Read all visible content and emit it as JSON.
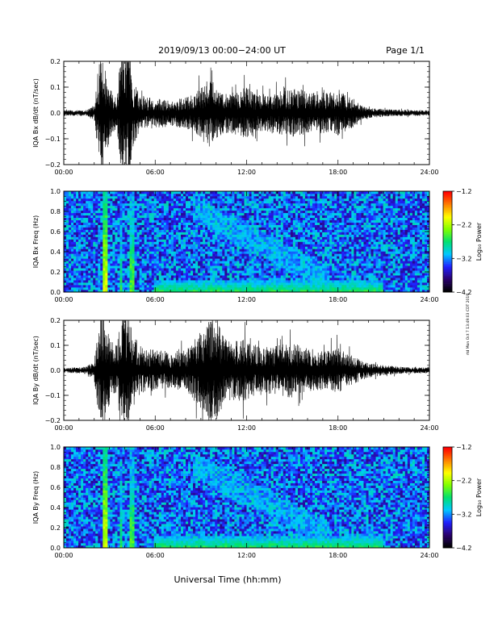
{
  "header": {
    "title": "2019/09/13  00:00−24:00 UT",
    "page": "Page 1/1"
  },
  "footer": {
    "xlabel": "Universal Time (hh:mm)"
  },
  "side_note": "rtd Mon Oct 7 13:49:03 CDT 2019",
  "colors": {
    "trace": "#000000",
    "spectrogram_scale": [
      "#000000",
      "#2a006e",
      "#2020ff",
      "#00c8ff",
      "#00e070",
      "#80ff00",
      "#ffff00",
      "#ff8000",
      "#ff0000"
    ]
  },
  "chart_data": [
    {
      "type": "line",
      "name": "bx-derivative",
      "ylabel": "IQA Bx dB/dt (nT/sec)",
      "xlim": [
        0,
        24
      ],
      "ylim": [
        -0.2,
        0.2
      ],
      "x_ticks": [
        "00:00",
        "06:00",
        "12:00",
        "18:00",
        "24:00"
      ],
      "y_ticks": [
        "−0.2",
        "−0.1",
        "0.0",
        "0.1",
        "0.2"
      ],
      "y_tick_values": [
        -0.2,
        -0.1,
        0.0,
        0.1,
        0.2
      ],
      "envelope": {
        "x_hours": [
          0,
          1,
          1.5,
          2,
          2.3,
          2.6,
          2.8,
          3.2,
          3.5,
          3.7,
          4.0,
          4.3,
          4.6,
          5.0,
          5.5,
          6.0,
          7.0,
          8.0,
          8.5,
          9.0,
          9.5,
          10.0,
          10.5,
          11.0,
          11.5,
          12.0,
          12.5,
          13.0,
          14.0,
          14.5,
          15.0,
          15.5,
          16.0,
          17.0,
          17.5,
          18.0,
          18.5,
          19.0,
          19.5,
          20.0,
          21.0,
          22.0,
          23.0,
          24.0
        ],
        "amplitude": [
          0.01,
          0.012,
          0.012,
          0.03,
          0.2,
          0.25,
          0.12,
          0.08,
          0.06,
          0.22,
          0.25,
          0.25,
          0.12,
          0.07,
          0.06,
          0.06,
          0.05,
          0.06,
          0.07,
          0.1,
          0.13,
          0.1,
          0.08,
          0.08,
          0.09,
          0.1,
          0.08,
          0.07,
          0.08,
          0.09,
          0.09,
          0.1,
          0.08,
          0.08,
          0.08,
          0.09,
          0.07,
          0.06,
          0.03,
          0.02,
          0.015,
          0.012,
          0.012,
          0.01
        ]
      }
    },
    {
      "type": "heatmap",
      "name": "bx-spectrogram",
      "ylabel": "IQA Bx Freq (Hz)",
      "xlim": [
        0,
        24
      ],
      "ylim": [
        0.0,
        1.0
      ],
      "x_ticks": [
        "00:00",
        "06:00",
        "12:00",
        "18:00",
        "24:00"
      ],
      "y_ticks": [
        "0.0",
        "0.2",
        "0.4",
        "0.6",
        "0.8",
        "1.0"
      ],
      "y_tick_values": [
        0.0,
        0.2,
        0.4,
        0.6,
        0.8,
        1.0
      ],
      "colorbar": {
        "label": "Log₁₀ Power",
        "range": [
          -4.2,
          -1.2
        ],
        "ticks": [
          "−1.2",
          "−2.2",
          "−3.2",
          "−4.2"
        ],
        "tick_values": [
          -1.2,
          -2.2,
          -3.2,
          -4.2
        ]
      },
      "features": [
        {
          "kind": "broadband_burst",
          "t_start_h": 2.5,
          "t_end_h": 2.9,
          "log_power": -2.0
        },
        {
          "kind": "broadband_burst",
          "t_start_h": 3.6,
          "t_end_h": 3.9,
          "log_power": -2.6
        },
        {
          "kind": "broadband_burst",
          "t_start_h": 4.3,
          "t_end_h": 4.6,
          "log_power": -2.4
        },
        {
          "kind": "low_freq_band",
          "t_start_h": 6.0,
          "t_end_h": 21.0,
          "f_max_hz": 0.12,
          "log_power": -2.6
        },
        {
          "kind": "descending_emission",
          "t_start_h": 8.5,
          "t_end_h": 17.5,
          "f_start_hz": 0.95,
          "f_end_hz": 0.25,
          "log_power": -3.2
        }
      ]
    },
    {
      "type": "line",
      "name": "by-derivative",
      "ylabel": "IQA By dB/dt (nT/sec)",
      "xlim": [
        0,
        24
      ],
      "ylim": [
        -0.2,
        0.2
      ],
      "x_ticks": [
        "00:00",
        "06:00",
        "12:00",
        "18:00",
        "24:00"
      ],
      "y_ticks": [
        "−0.2",
        "−0.1",
        "0.0",
        "0.1",
        "0.2"
      ],
      "y_tick_values": [
        -0.2,
        -0.1,
        0.0,
        0.1,
        0.2
      ],
      "envelope": {
        "x_hours": [
          0,
          1,
          1.5,
          2,
          2.3,
          2.6,
          2.8,
          3.2,
          3.5,
          3.7,
          4.0,
          4.3,
          4.6,
          5.0,
          5.5,
          6.0,
          7.0,
          8.0,
          8.5,
          9.0,
          9.5,
          10.0,
          10.5,
          11.0,
          11.5,
          12.0,
          12.5,
          13.0,
          14.0,
          14.5,
          15.0,
          15.5,
          16.0,
          17.0,
          17.5,
          18.0,
          18.5,
          19.0,
          19.5,
          20.0,
          21.0,
          22.0,
          23.0,
          24.0
        ],
        "amplitude": [
          0.01,
          0.012,
          0.015,
          0.04,
          0.2,
          0.25,
          0.16,
          0.12,
          0.1,
          0.22,
          0.25,
          0.22,
          0.14,
          0.1,
          0.08,
          0.09,
          0.07,
          0.08,
          0.12,
          0.16,
          0.2,
          0.2,
          0.14,
          0.12,
          0.13,
          0.12,
          0.1,
          0.09,
          0.1,
          0.11,
          0.11,
          0.1,
          0.09,
          0.08,
          0.08,
          0.09,
          0.07,
          0.06,
          0.04,
          0.03,
          0.02,
          0.015,
          0.012,
          0.012
        ]
      }
    },
    {
      "type": "heatmap",
      "name": "by-spectrogram",
      "ylabel": "IQA By Freq (Hz)",
      "xlim": [
        0,
        24
      ],
      "ylim": [
        0.0,
        1.0
      ],
      "x_ticks": [
        "00:00",
        "06:00",
        "12:00",
        "18:00",
        "24:00"
      ],
      "y_ticks": [
        "0.0",
        "0.2",
        "0.4",
        "0.6",
        "0.8",
        "1.0"
      ],
      "y_tick_values": [
        0.0,
        0.2,
        0.4,
        0.6,
        0.8,
        1.0
      ],
      "colorbar": {
        "label": "Log₁₀ Power",
        "range": [
          -4.2,
          -1.2
        ],
        "ticks": [
          "−1.2",
          "−2.2",
          "−3.2",
          "−4.2"
        ],
        "tick_values": [
          -1.2,
          -2.2,
          -3.2,
          -4.2
        ]
      },
      "features": [
        {
          "kind": "broadband_burst",
          "t_start_h": 2.5,
          "t_end_h": 2.9,
          "log_power": -2.0
        },
        {
          "kind": "broadband_burst",
          "t_start_h": 3.6,
          "t_end_h": 3.9,
          "log_power": -2.6
        },
        {
          "kind": "broadband_burst",
          "t_start_h": 4.3,
          "t_end_h": 4.6,
          "log_power": -2.4
        },
        {
          "kind": "low_freq_band",
          "t_start_h": 6.0,
          "t_end_h": 21.0,
          "f_max_hz": 0.12,
          "log_power": -2.6
        },
        {
          "kind": "descending_emission",
          "t_start_h": 8.5,
          "t_end_h": 17.5,
          "f_start_hz": 0.95,
          "f_end_hz": 0.25,
          "log_power": -3.2
        }
      ]
    }
  ]
}
